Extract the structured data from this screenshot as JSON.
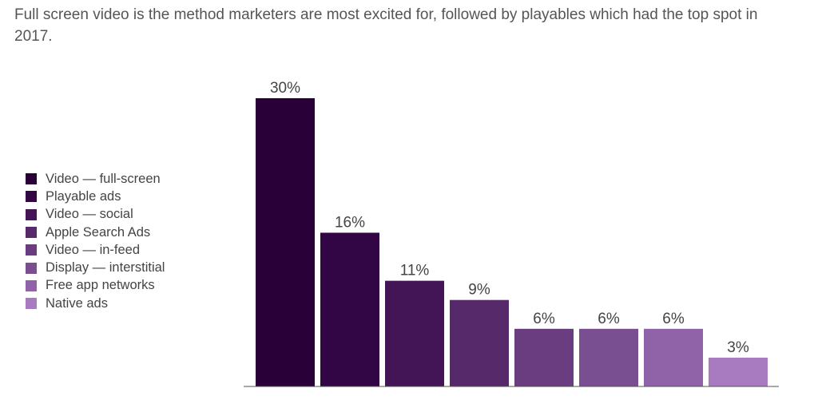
{
  "chart_data": {
    "type": "bar",
    "title": "Full screen video is the method marketers are most excited for, followed by playables which had the top spot in 2017.",
    "categories": [
      "Video — full-screen",
      "Playable ads",
      "Video — social",
      "Apple Search Ads",
      "Video — in-feed",
      "Display — interstitial",
      "Free app networks",
      "Native ads"
    ],
    "values": [
      30,
      16,
      11,
      9,
      6,
      6,
      6,
      3
    ],
    "value_labels": [
      "30%",
      "16%",
      "11%",
      "9%",
      "6%",
      "6%",
      "6%",
      "3%"
    ],
    "colors": [
      "#2a0038",
      "#320645",
      "#431456",
      "#56296a",
      "#6a3d80",
      "#7a4f92",
      "#9062a8",
      "#a87ac0"
    ],
    "ylim": [
      0,
      30
    ],
    "legend_position": "left",
    "grid": false
  }
}
